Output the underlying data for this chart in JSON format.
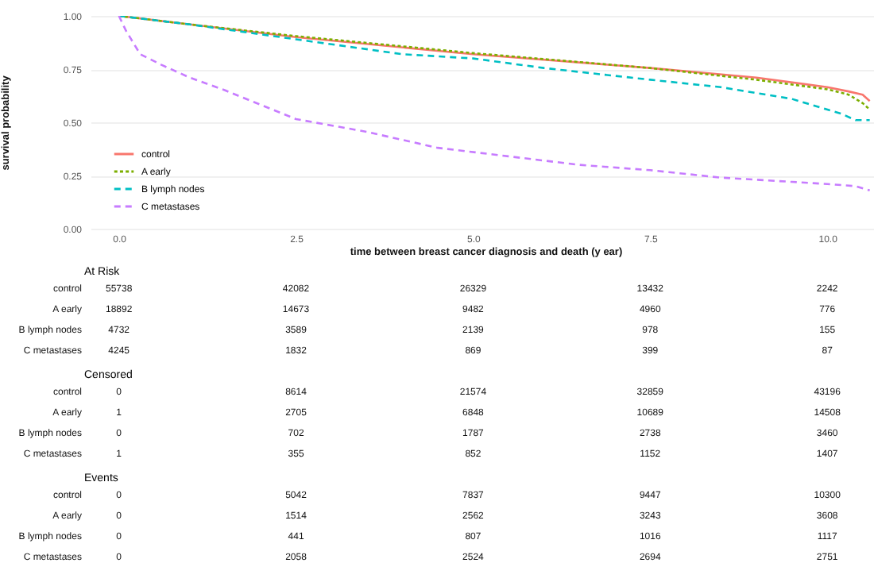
{
  "chart_data": [
    {
      "type": "line",
      "xlabel": "time between breast cancer diagnosis and death (y ear)",
      "ylabel": "survival probability",
      "xlim": [
        -0.4,
        10.75
      ],
      "ylim": [
        0,
        1
      ],
      "xticks": [
        {
          "value": 0,
          "label": "0.0"
        },
        2.5,
        {
          "value": 5,
          "label": "5.0"
        },
        7.5,
        {
          "value": 10,
          "label": "10.0"
        }
      ],
      "yticks": [
        {
          "value": 0,
          "label": "0.00"
        },
        0.25,
        {
          "value": 0.5,
          "label": "0.50"
        },
        0.75,
        {
          "value": 1,
          "label": "1.00"
        }
      ],
      "grid": "y",
      "legend": "bottom left",
      "series": [
        {
          "name": "control",
          "color": "#f8766d",
          "line_style": "solid",
          "x": [
            0,
            1,
            2.5,
            5,
            7.5,
            9,
            10,
            10.3,
            10.5,
            10.6
          ],
          "values": [
            1.0,
            0.96,
            0.9,
            0.82,
            0.755,
            0.71,
            0.665,
            0.645,
            0.63,
            0.6
          ]
        },
        {
          "name": "A early",
          "color": "#7cae00",
          "line_style": "dotted",
          "x": [
            0,
            1,
            2.5,
            5,
            7.5,
            9,
            10,
            10.3,
            10.5,
            10.6
          ],
          "values": [
            1.0,
            0.96,
            0.905,
            0.825,
            0.755,
            0.7,
            0.655,
            0.63,
            0.59,
            0.56
          ]
        },
        {
          "name": "B lymph nodes",
          "color": "#00bfc4",
          "line_style": "dashed",
          "x": [
            0,
            1,
            2.5,
            4,
            5,
            6,
            7.5,
            8.5,
            9.5,
            10.2,
            10.4,
            10.6
          ],
          "values": [
            1.0,
            0.96,
            0.89,
            0.82,
            0.8,
            0.755,
            0.7,
            0.665,
            0.61,
            0.54,
            0.51,
            0.51
          ]
        },
        {
          "name": "C metastases",
          "color": "#c77cff",
          "line_style": "dashed",
          "x": [
            0,
            0.1,
            0.3,
            0.6,
            1,
            1.5,
            2.5,
            3.5,
            4.5,
            5.5,
            6.5,
            7.5,
            8.5,
            9.5,
            10,
            10.4,
            10.6
          ],
          "values": [
            1.0,
            0.93,
            0.82,
            0.77,
            0.71,
            0.65,
            0.515,
            0.455,
            0.38,
            0.34,
            0.3,
            0.275,
            0.24,
            0.22,
            0.21,
            0.2,
            0.18
          ]
        }
      ]
    },
    {
      "type": "heatmap",
      "title": "At Risk",
      "tick_labels": "y",
      "data_labels": true,
      "categories": [
        "0.0",
        "2.5",
        "5.0",
        "7.5",
        "10.0"
      ],
      "y_categories": [
        "control",
        "A early",
        "B lymph nodes",
        "C metastases"
      ],
      "cells": [
        [
          55738,
          42082,
          26329,
          13432,
          2242
        ],
        [
          18892,
          14673,
          9482,
          4960,
          776
        ],
        [
          4732,
          3589,
          2139,
          978,
          155
        ],
        [
          4245,
          1832,
          869,
          399,
          87
        ]
      ]
    },
    {
      "type": "heatmap",
      "title": "Censored",
      "tick_labels": "y",
      "data_labels": true,
      "categories": [
        "0.0",
        "2.5",
        "5.0",
        "7.5",
        "10.0"
      ],
      "y_categories": [
        "control",
        "A early",
        "B lymph nodes",
        "C metastases"
      ],
      "cells": [
        [
          0,
          8614,
          21574,
          32859,
          43196
        ],
        [
          1,
          2705,
          6848,
          10689,
          14508
        ],
        [
          0,
          702,
          1787,
          2738,
          3460
        ],
        [
          1,
          355,
          852,
          1152,
          1407
        ]
      ]
    },
    {
      "type": "heatmap",
      "title": "Events",
      "tick_labels": "y",
      "data_labels": true,
      "categories": [
        "0.0",
        "2.5",
        "5.0",
        "7.5",
        "10.0"
      ],
      "y_categories": [
        "control",
        "A early",
        "B lymph nodes",
        "C metastases"
      ],
      "cells": [
        [
          0,
          5042,
          7837,
          9447,
          10300
        ],
        [
          0,
          1514,
          2562,
          3243,
          3608
        ],
        [
          0,
          441,
          807,
          1016,
          1117
        ],
        [
          0,
          2058,
          2524,
          2694,
          2751
        ]
      ]
    }
  ]
}
